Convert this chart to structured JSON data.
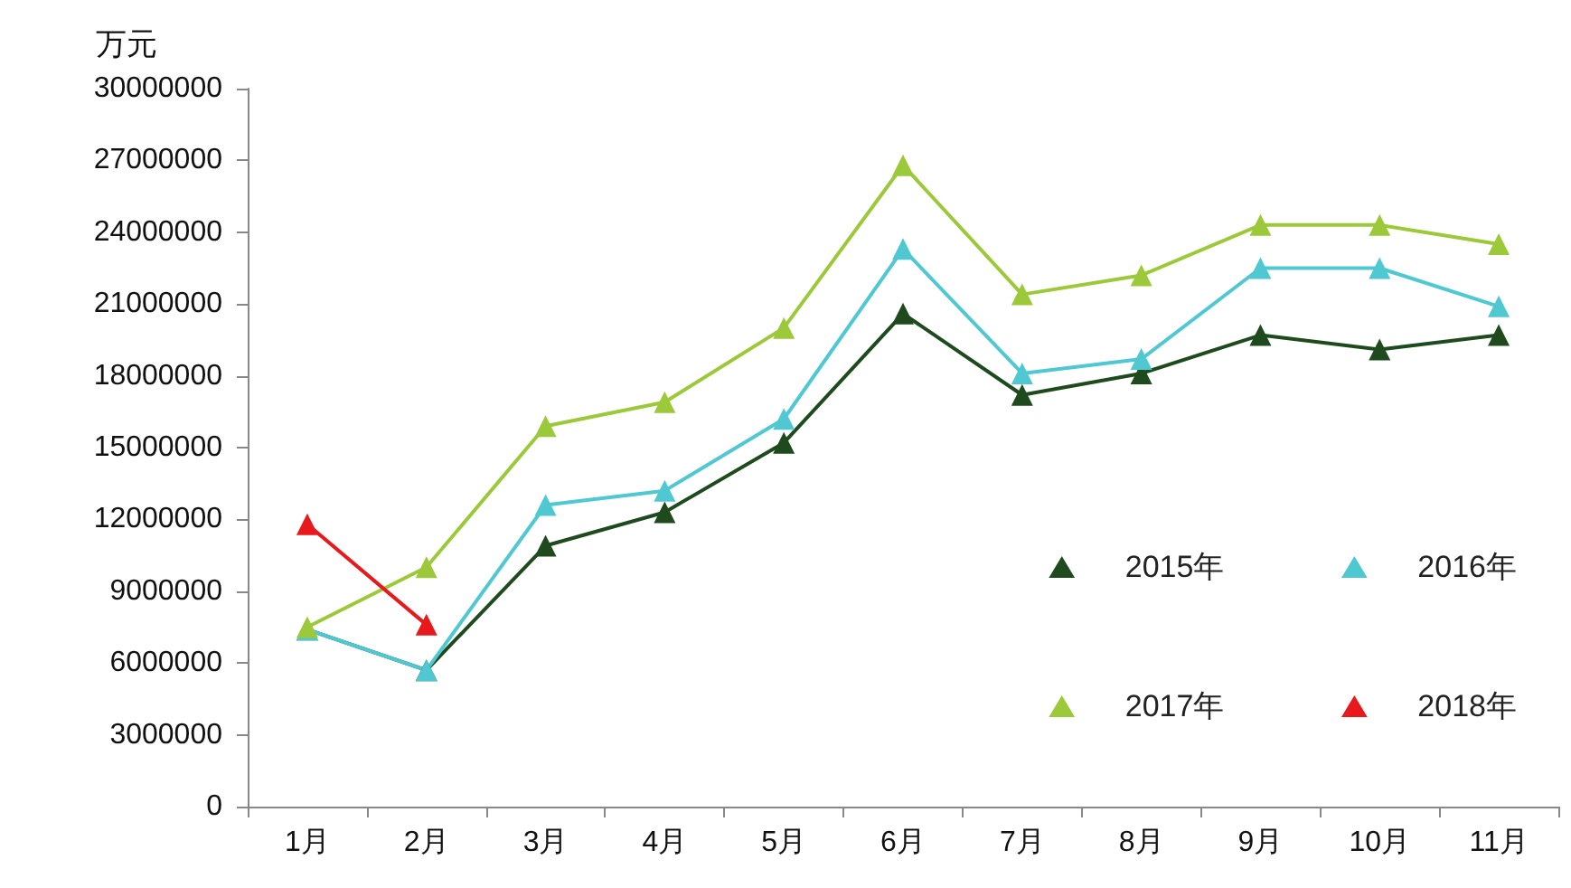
{
  "chart_data": {
    "type": "line",
    "ylabel": "万元",
    "categories": [
      "1月",
      "2月",
      "3月",
      "4月",
      "5月",
      "6月",
      "7月",
      "8月",
      "9月",
      "10月",
      "11月"
    ],
    "series": [
      {
        "name": "2015年",
        "color": "#1e4a1e",
        "values": [
          7400000,
          5700000,
          10900000,
          12300000,
          15200000,
          20600000,
          17200000,
          18100000,
          19700000,
          19100000,
          19700000
        ]
      },
      {
        "name": "2016年",
        "color": "#4fc8d2",
        "values": [
          7400000,
          5700000,
          12600000,
          13200000,
          16200000,
          23300000,
          18100000,
          18700000,
          22500000,
          22500000,
          20900000
        ]
      },
      {
        "name": "2017年",
        "color": "#9cc93a",
        "values": [
          7500000,
          10000000,
          15900000,
          16900000,
          20000000,
          26800000,
          21400000,
          22200000,
          24300000,
          24300000,
          23500000
        ]
      },
      {
        "name": "2018年",
        "color": "#e8191c",
        "values": [
          11800000,
          7600000,
          null,
          null,
          null,
          null,
          null,
          null,
          null,
          null,
          null
        ]
      }
    ],
    "ylim": [
      0,
      30000000
    ],
    "yticks": [
      0,
      3000000,
      6000000,
      9000000,
      12000000,
      15000000,
      18000000,
      21000000,
      24000000,
      27000000,
      30000000
    ],
    "grid": false,
    "legend": "bottom right",
    "marker": "triangle",
    "line_style": "solid"
  }
}
